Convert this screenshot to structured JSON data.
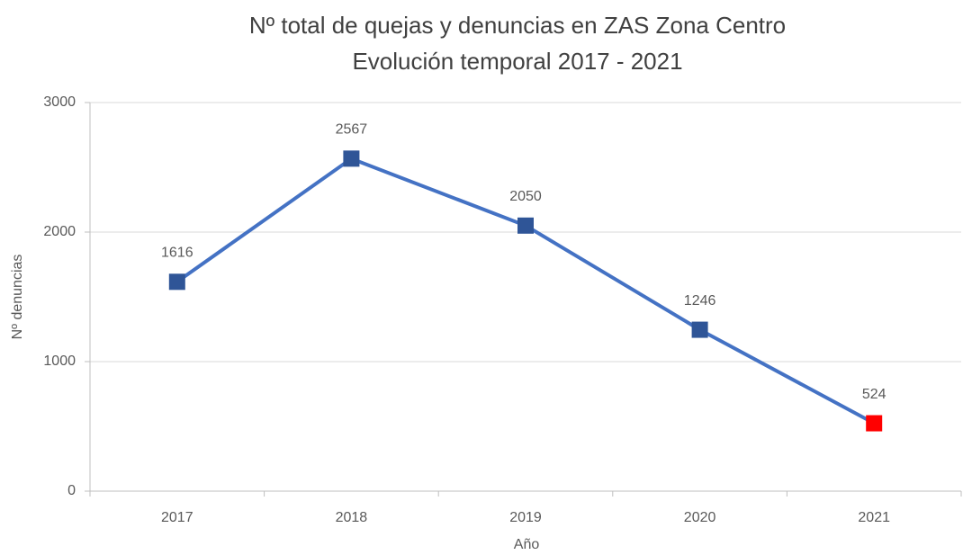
{
  "chart_data": {
    "type": "line",
    "title": "Nº total de quejas y denuncias en ZAS Zona Centro",
    "subtitle": "Evolución temporal 2017 - 2021",
    "x_label": "Año",
    "y_label": "Nº denuncias",
    "categories": [
      "2017",
      "2018",
      "2019",
      "2020",
      "2021"
    ],
    "values": [
      1616,
      2567,
      2050,
      1246,
      524
    ],
    "color": "#4472c4",
    "marker_colors": [
      "#2f5597",
      "#2f5597",
      "#2f5597",
      "#2f5597",
      "#ff0000"
    ],
    "ylim": [
      0,
      3000
    ],
    "yticks": [
      0,
      1000,
      2000,
      3000
    ],
    "grid": true
  }
}
